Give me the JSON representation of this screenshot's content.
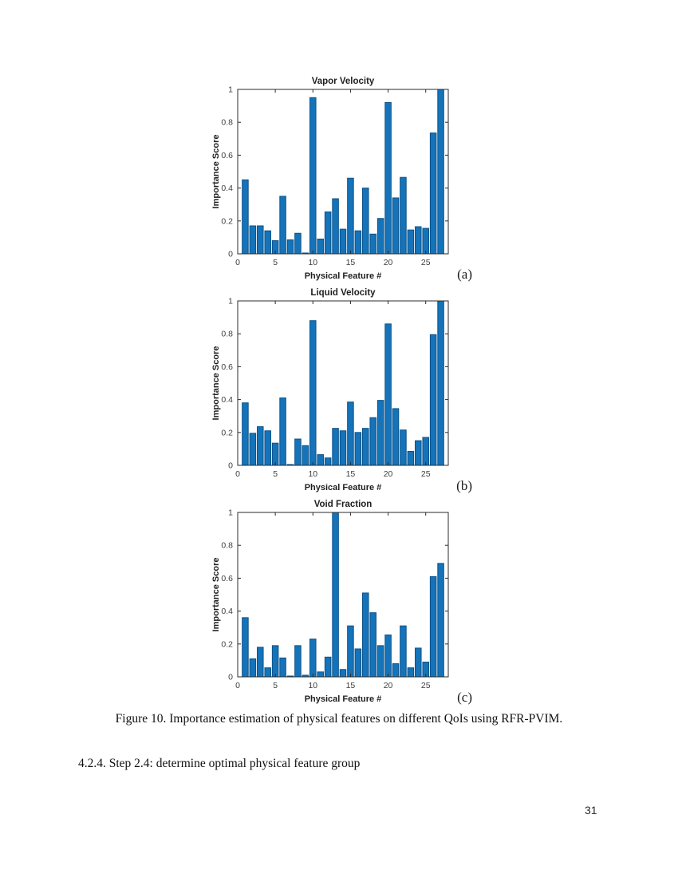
{
  "figure": {
    "caption": "Figure 10. Importance estimation of physical features on different QoIs using RFR-PVIM."
  },
  "section": {
    "heading": "4.2.4. Step 2.4: determine optimal physical feature group"
  },
  "page": {
    "number": "31"
  },
  "colors": {
    "bar_fill": "#1573b9",
    "bar_edge": "#0d5289",
    "axis": "#2b2b2b",
    "tick_label": "#3d3d3d",
    "label_text": "#1f1f1f",
    "background": "#ffffff"
  },
  "chart_data": [
    {
      "type": "bar",
      "panel": "(a)",
      "title": "Vapor Velocity",
      "xlabel": "Physical Feature #",
      "ylabel": "Importance Score",
      "xlim": [
        0,
        28
      ],
      "ylim": [
        0,
        1
      ],
      "xticks": [
        0,
        5,
        10,
        15,
        20,
        25
      ],
      "yticks": [
        0,
        0.2,
        0.4,
        0.6,
        0.8,
        1
      ],
      "bar_width": 0.8,
      "grid": false,
      "categories": [
        1,
        2,
        3,
        4,
        5,
        6,
        7,
        8,
        9,
        10,
        11,
        12,
        13,
        14,
        15,
        16,
        17,
        18,
        19,
        20,
        21,
        22,
        23,
        24,
        25,
        26,
        27
      ],
      "values": [
        0.45,
        0.17,
        0.17,
        0.14,
        0.08,
        0.35,
        0.085,
        0.125,
        0.005,
        0.95,
        0.09,
        0.255,
        0.335,
        0.15,
        0.46,
        0.14,
        0.4,
        0.12,
        0.215,
        0.92,
        0.34,
        0.465,
        0.145,
        0.165,
        0.155,
        0.735,
        1.0
      ]
    },
    {
      "type": "bar",
      "panel": "(b)",
      "title": "Liquid Velocity",
      "xlabel": "Physical Feature #",
      "ylabel": "Importance Score",
      "xlim": [
        0,
        28
      ],
      "ylim": [
        0,
        1
      ],
      "xticks": [
        0,
        5,
        10,
        15,
        20,
        25
      ],
      "yticks": [
        0,
        0.2,
        0.4,
        0.6,
        0.8,
        1
      ],
      "bar_width": 0.8,
      "grid": false,
      "categories": [
        1,
        2,
        3,
        4,
        5,
        6,
        7,
        8,
        9,
        10,
        11,
        12,
        13,
        14,
        15,
        16,
        17,
        18,
        19,
        20,
        21,
        22,
        23,
        24,
        25,
        26,
        27
      ],
      "values": [
        0.38,
        0.195,
        0.235,
        0.21,
        0.135,
        0.41,
        0.005,
        0.16,
        0.12,
        0.88,
        0.065,
        0.045,
        0.225,
        0.21,
        0.385,
        0.2,
        0.225,
        0.29,
        0.395,
        0.86,
        0.345,
        0.215,
        0.085,
        0.15,
        0.17,
        0.795,
        1.0
      ]
    },
    {
      "type": "bar",
      "panel": "(c)",
      "title": "Void Fraction",
      "xlabel": "Physical Feature #",
      "ylabel": "Importance Score",
      "xlim": [
        0,
        28
      ],
      "ylim": [
        0,
        1
      ],
      "xticks": [
        0,
        5,
        10,
        15,
        20,
        25
      ],
      "yticks": [
        0,
        0.2,
        0.4,
        0.6,
        0.8,
        1
      ],
      "bar_width": 0.8,
      "grid": false,
      "categories": [
        1,
        2,
        3,
        4,
        5,
        6,
        7,
        8,
        9,
        10,
        11,
        12,
        13,
        14,
        15,
        16,
        17,
        18,
        19,
        20,
        21,
        22,
        23,
        24,
        25,
        26,
        27
      ],
      "values": [
        0.36,
        0.11,
        0.18,
        0.055,
        0.19,
        0.115,
        0.005,
        0.19,
        0.01,
        0.23,
        0.03,
        0.12,
        1.0,
        0.045,
        0.31,
        0.17,
        0.51,
        0.39,
        0.19,
        0.255,
        0.08,
        0.31,
        0.055,
        0.175,
        0.09,
        0.61,
        0.69
      ]
    }
  ]
}
